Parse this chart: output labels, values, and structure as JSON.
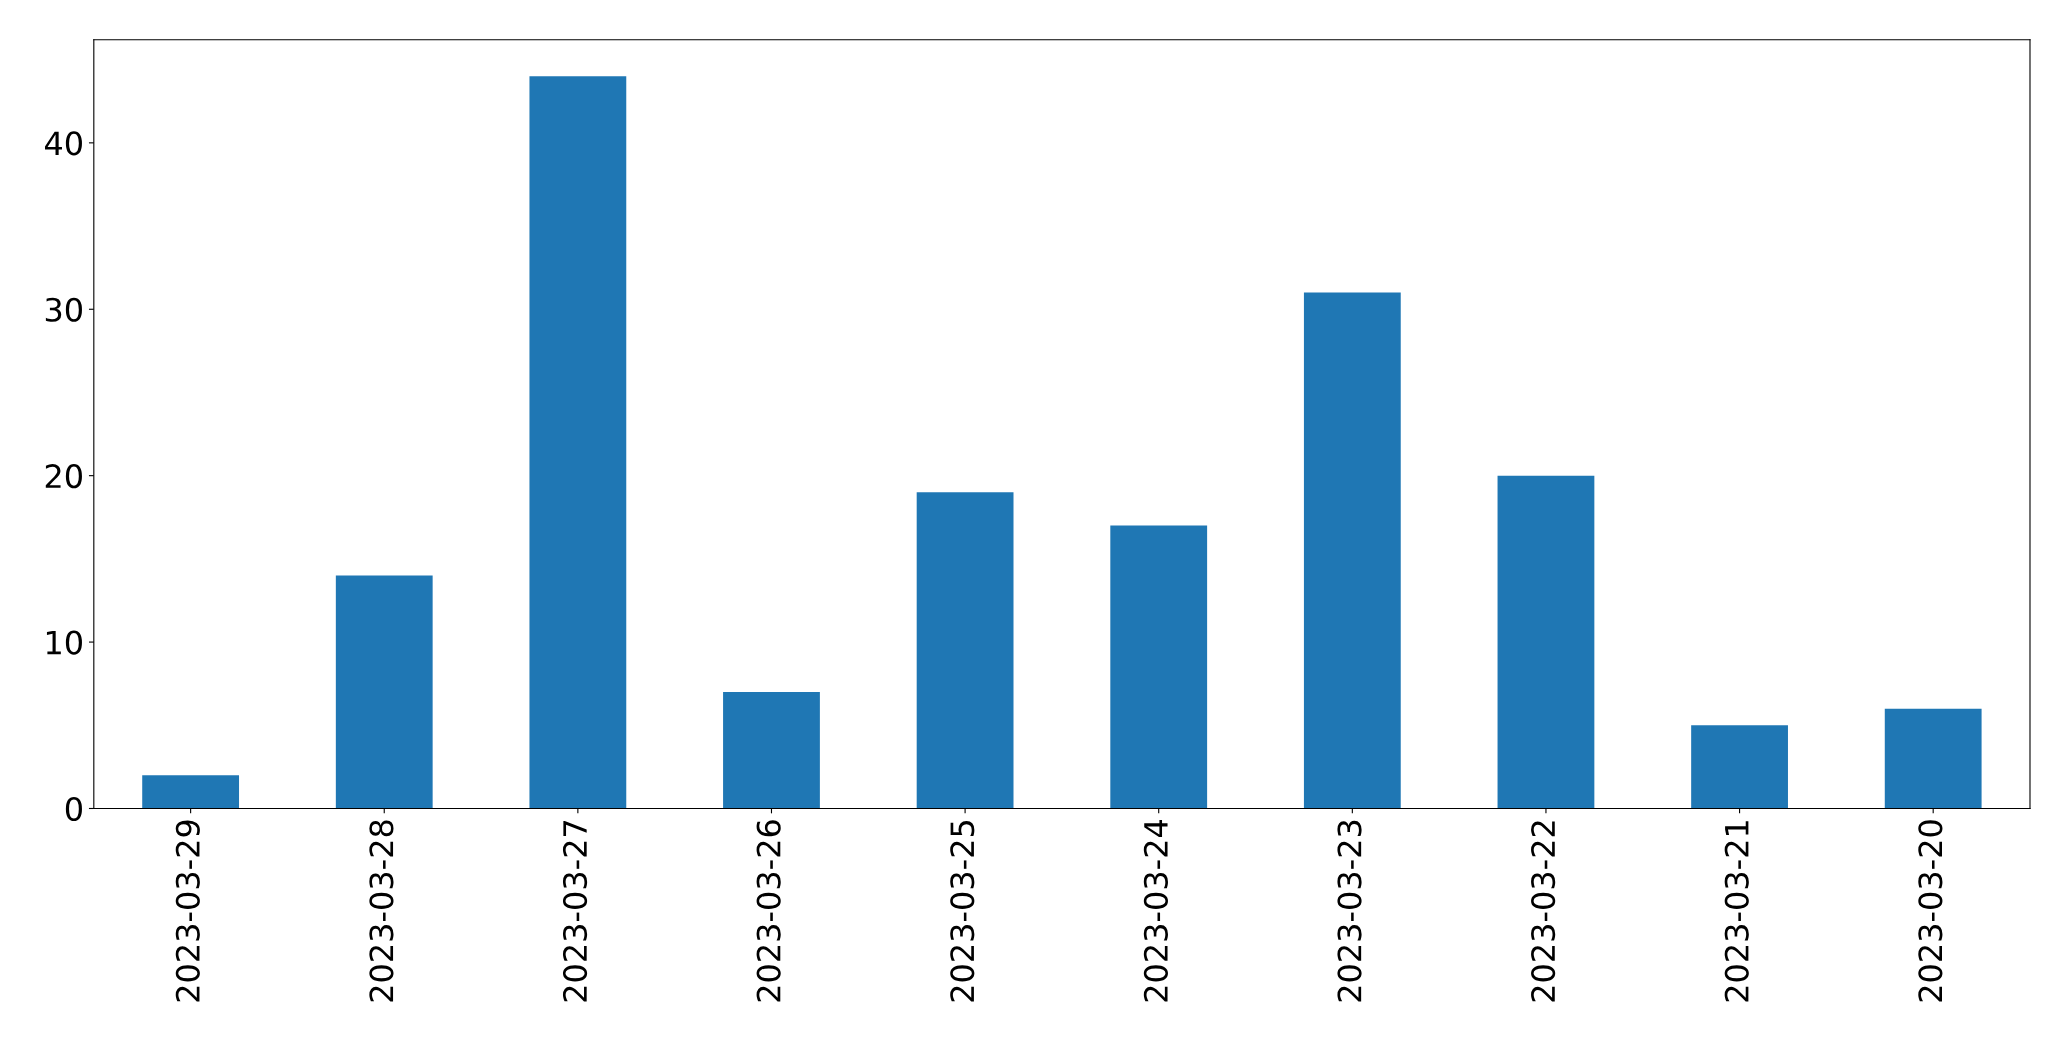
{
  "chart_data": {
    "type": "bar",
    "categories": [
      "2023-03-29",
      "2023-03-28",
      "2023-03-27",
      "2023-03-26",
      "2023-03-25",
      "2023-03-24",
      "2023-03-23",
      "2023-03-22",
      "2023-03-21",
      "2023-03-20"
    ],
    "values": [
      2,
      14,
      44,
      7,
      19,
      17,
      31,
      20,
      5,
      6
    ],
    "color": "#1f77b4",
    "ylim": [
      0,
      46.2
    ],
    "yticks": [
      0,
      10,
      20,
      30,
      40
    ],
    "grid": false
  }
}
